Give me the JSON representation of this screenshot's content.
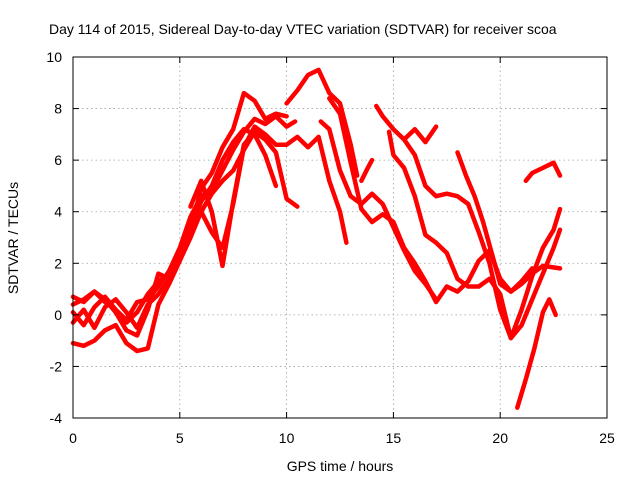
{
  "chart_data": {
    "type": "scatter",
    "title": "Day 114 of 2015, Sidereal Day-to-day VTEC variation (SDTVAR) for receiver scoa",
    "xlabel": "GPS time / hours",
    "ylabel": "SDTVAR / TECUs",
    "xlim": [
      0,
      25
    ],
    "ylim": [
      -4,
      10
    ],
    "xticks": [
      "0",
      "5",
      "10",
      "15",
      "20",
      "25"
    ],
    "yticks": [
      "-4",
      "-2",
      "0",
      "2",
      "4",
      "6",
      "8",
      "10"
    ],
    "grid": true,
    "marker": "+",
    "color": "#ff0000",
    "series": [
      {
        "x": [
          0,
          0.5,
          1,
          1.5,
          2,
          2.5,
          3,
          3.5,
          4,
          4.5,
          5,
          5.5,
          6,
          6.5,
          7,
          7.5,
          8,
          8.5,
          9,
          9.5,
          10,
          10.4
        ],
        "y": [
          0.7,
          0.5,
          0.9,
          0.5,
          0.2,
          -0.2,
          0.5,
          0.6,
          1.1,
          1.7,
          2.6,
          3.8,
          4.6,
          4.8,
          5.6,
          6.4,
          7.1,
          7.6,
          7.4,
          7.7,
          7.3,
          7.5
        ]
      },
      {
        "x": [
          0,
          0.5,
          1,
          1.5,
          2,
          2.5,
          3,
          3.5,
          4,
          4.5,
          5,
          5.5,
          6,
          6.5,
          7,
          7.5,
          8,
          8.5,
          9,
          9.5,
          10,
          10.5,
          11,
          11.5,
          12,
          12.5,
          12.8
        ],
        "y": [
          -1.1,
          -1.2,
          -1.0,
          -0.6,
          -0.4,
          -1.1,
          -1.4,
          -1.3,
          0.4,
          1.2,
          2.1,
          3.0,
          4.0,
          3.2,
          2.6,
          4.3,
          6.5,
          7.3,
          7.0,
          6.6,
          6.6,
          6.9,
          6.5,
          6.9,
          5.2,
          4.0,
          2.8
        ]
      },
      {
        "x": [
          0,
          0.5,
          1,
          1.5,
          2,
          2.5,
          3,
          3.5,
          4,
          4.5,
          5,
          5.5,
          6,
          6.5,
          7,
          7.5,
          8,
          8.5,
          9,
          9.5,
          10,
          10.5
        ],
        "y": [
          -0.3,
          0.2,
          -0.5,
          0.3,
          0.6,
          0.1,
          -0.5,
          0.4,
          0.8,
          1.4,
          2.3,
          3.4,
          4.0,
          4.7,
          5.2,
          5.6,
          6.4,
          7.1,
          6.8,
          6.3,
          4.5,
          4.2
        ]
      },
      {
        "x": [
          0,
          0.5,
          1,
          1.5,
          2,
          2.5,
          3,
          3.5,
          4,
          4.5,
          5,
          5.5,
          6,
          6.5,
          7,
          7.5,
          8,
          8.5,
          9,
          9.5
        ],
        "y": [
          0.1,
          -0.4,
          0.3,
          0.7,
          0.2,
          -0.3,
          0.1,
          0.8,
          1.3,
          1.6,
          2.2,
          3.4,
          4.4,
          5.0,
          6.0,
          6.7,
          7.2,
          7.0,
          6.2,
          5.0
        ]
      },
      {
        "x": [
          0,
          0.5,
          1,
          1.5,
          2,
          2.5,
          3,
          3.5,
          4,
          4.5,
          5,
          5.5,
          6,
          6.5,
          7,
          7.5,
          8,
          8.5,
          9,
          9.5,
          10
        ],
        "y": [
          0.4,
          0.6,
          0.9,
          0.6,
          0.1,
          -0.6,
          -0.8,
          0.2,
          1.6,
          1.4,
          2.1,
          3.3,
          4.9,
          5.5,
          6.5,
          7.2,
          8.6,
          8.3,
          7.6,
          7.8,
          7.7
        ]
      },
      {
        "x": [
          5.5,
          6,
          6.5,
          7,
          7.5,
          8,
          8.5
        ],
        "y": [
          4.2,
          5.2,
          4.0,
          1.9,
          4.4,
          6.6,
          7.1
        ]
      },
      {
        "x": [
          10,
          10.5,
          11,
          11.5,
          12,
          12.5,
          13,
          13.3
        ],
        "y": [
          8.2,
          8.7,
          9.3,
          9.5,
          8.6,
          8.2,
          6.6,
          5.4
        ]
      },
      {
        "x": [
          11.6,
          12,
          12.5,
          13,
          13.5,
          14,
          14.5,
          15,
          15.5,
          16,
          16.5,
          17
        ],
        "y": [
          7.5,
          7.2,
          5.6,
          4.6,
          4.3,
          4.7,
          4.3,
          3.4,
          2.5,
          1.7,
          1.2,
          0.6
        ]
      },
      {
        "x": [
          12,
          12.5,
          13,
          13.5,
          14,
          14.5,
          15,
          15.5,
          16,
          16.5,
          17,
          17.5,
          18,
          18.5,
          19,
          19.5,
          20,
          20.5,
          21,
          21.5,
          22,
          22.8
        ],
        "y": [
          8.4,
          7.8,
          5.9,
          4.1,
          3.6,
          3.9,
          3.6,
          2.6,
          2.0,
          1.3,
          0.5,
          1.1,
          0.9,
          1.3,
          2.1,
          2.5,
          1.4,
          0.9,
          1.2,
          1.6,
          1.9,
          1.8
        ]
      },
      {
        "x": [
          13.5,
          13.8,
          14.0
        ],
        "y": [
          5.2,
          5.7,
          6.0
        ]
      },
      {
        "x": [
          14.2,
          14.5,
          15,
          15.5,
          16,
          16.5,
          17
        ],
        "y": [
          8.1,
          7.7,
          7.2,
          6.8,
          7.2,
          6.7,
          7.3
        ]
      },
      {
        "x": [
          14.8,
          15,
          15.5,
          16,
          16.5,
          17,
          17.5,
          18,
          18.5,
          19,
          19.5,
          20,
          20.5,
          21,
          21.5,
          22,
          22.5,
          22.8
        ],
        "y": [
          7.1,
          6.2,
          5.7,
          4.6,
          3.1,
          2.8,
          2.4,
          1.4,
          1.1,
          1.1,
          1.4,
          0.8,
          -0.9,
          -0.4,
          0.6,
          1.6,
          2.6,
          3.3
        ]
      },
      {
        "x": [
          15.5,
          16,
          16.5,
          17,
          17.5,
          18,
          18.5,
          19,
          19.5,
          20,
          20.5,
          21,
          21.5,
          22,
          22.5,
          22.8
        ],
        "y": [
          6.8,
          6.2,
          5.0,
          4.6,
          4.7,
          4.6,
          4.3,
          3.2,
          2.0,
          0.2,
          -0.9,
          0.2,
          1.5,
          2.6,
          3.3,
          4.1
        ]
      },
      {
        "x": [
          18,
          18.4,
          18.8,
          19.2,
          19.6,
          20,
          20.5,
          21,
          21.5
        ],
        "y": [
          6.3,
          5.4,
          4.6,
          3.6,
          2.4,
          1.2,
          0.9,
          1.3,
          1.8
        ]
      },
      {
        "x": [
          20.8,
          21.2,
          21.6,
          22,
          22.3,
          22.6
        ],
        "y": [
          -3.6,
          -2.5,
          -1.3,
          0.1,
          0.6,
          0.0
        ]
      },
      {
        "x": [
          21.2,
          21.5,
          22,
          22.5,
          22.8
        ],
        "y": [
          5.2,
          5.5,
          5.7,
          5.9,
          5.4
        ]
      }
    ]
  }
}
